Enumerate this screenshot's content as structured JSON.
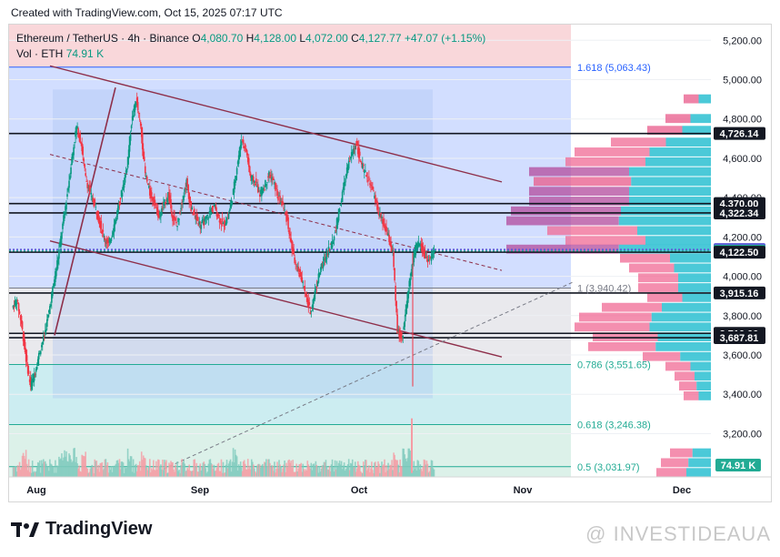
{
  "header": {
    "created_text": "Created with TradingView.com, Oct 15, 2025 07:17 UTC"
  },
  "legend": {
    "symbol": "Ethereum / TetherUS · 4h · Binance",
    "open_label": "O",
    "open": "4,080.70",
    "high_label": "H",
    "high": "4,128.00",
    "low_label": "L",
    "low": "4,072.00",
    "close_label": "C",
    "close": "4,127.77",
    "change": "+47.07 (+1.15%)",
    "vol_label": "Vol · ETH",
    "vol_value": "74.91 K"
  },
  "footer": {
    "brand": "TradingView",
    "watermark": "@ INVESTIDEAUA"
  },
  "colors": {
    "up": "#089981",
    "down": "#f23645",
    "channel": "#8e2f4a",
    "fib_blue": "#2962ff",
    "fib_teal": "#22ab94"
  },
  "chart_data": {
    "type": "candlestick",
    "y_axis": {
      "min": 2980,
      "max": 5280,
      "ticks": [
        "5,200.00",
        "5,000.00",
        "4,800.00",
        "4,600.00",
        "4,400.00",
        "4,200.00",
        "4,000.00",
        "3,800.00",
        "3,600.00",
        "3,400.00",
        "3,200.00"
      ],
      "tick_values": [
        5200,
        5000,
        4800,
        4600,
        4400,
        4200,
        4000,
        3800,
        3600,
        3400,
        3200
      ]
    },
    "x_axis": {
      "ticks": [
        "Aug",
        "Sep",
        "Oct",
        "Nov",
        "Dec"
      ]
    },
    "price_levels": [
      {
        "label": "4,726.14",
        "value": 4726.14,
        "color": "#131722"
      },
      {
        "label": "4,370.00",
        "value": 4370.0,
        "color": "#131722"
      },
      {
        "label": "4,322.34",
        "value": 4322.34,
        "color": "#131722"
      },
      {
        "label": "4,136.10",
        "value": 4136.1,
        "color": "#5b5bd6"
      },
      {
        "label": "4,127.77",
        "value": 4127.77,
        "color": "#22ab94"
      },
      {
        "label": "4,122.50",
        "value": 4122.5,
        "color": "#131722"
      },
      {
        "label": "3,915.16",
        "value": 3915.16,
        "color": "#131722"
      },
      {
        "label": "3,710.00",
        "value": 3710.0,
        "color": "#131722"
      },
      {
        "label": "3,687.81",
        "value": 3687.81,
        "color": "#131722"
      }
    ],
    "fib_levels": [
      {
        "label": "1.618 (5,063.43)",
        "value": 5063.43,
        "color": "#2962ff"
      },
      {
        "label": "1 (3,940.42)",
        "value": 3940.42,
        "color": "#787b86"
      },
      {
        "label": "0.786 (3,551.65)",
        "value": 3551.65,
        "color": "#22ab94"
      },
      {
        "label": "0.618 (3,246.38)",
        "value": 3246.38,
        "color": "#22ab94"
      },
      {
        "label": "0.5 (3,031.97)",
        "value": 3031.97,
        "color": "#22ab94"
      }
    ],
    "volume_label": "74.91 K",
    "price_path": [
      3840,
      3880,
      3760,
      3580,
      3440,
      3520,
      3620,
      3700,
      3820,
      3960,
      4100,
      4260,
      4420,
      4600,
      4760,
      4680,
      4500,
      4420,
      4360,
      4280,
      4200,
      4160,
      4240,
      4340,
      4440,
      4560,
      4780,
      4900,
      4760,
      4520,
      4420,
      4380,
      4300,
      4360,
      4420,
      4300,
      4260,
      4380,
      4480,
      4340,
      4300,
      4260,
      4280,
      4320,
      4360,
      4300,
      4260,
      4300,
      4400,
      4560,
      4700,
      4640,
      4500,
      4480,
      4420,
      4460,
      4520,
      4480,
      4400,
      4360,
      4280,
      4140,
      4040,
      4000,
      3900,
      3820,
      3920,
      4020,
      4080,
      4140,
      4180,
      4300,
      4420,
      4540,
      4620,
      4680,
      4580,
      4520,
      4480,
      4400,
      4320,
      4260,
      4200,
      4120,
      3720,
      3680,
      3860,
      4040,
      4140,
      4180,
      4100,
      4080,
      4128
    ]
  }
}
